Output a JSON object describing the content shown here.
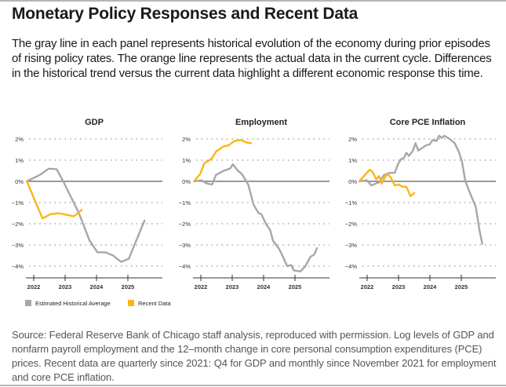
{
  "title": "Monetary Policy Responses and Recent Data",
  "description": "The gray line in each panel represents historical evolution of the economy during prior episodes of rising policy rates. The orange line represents the actual data in the current cycle. Differences in the historical trend versus the current data highlight a different economic response this time.",
  "source": "Source: Federal Reserve Bank of Chicago staff analysis, reproduced with permission. Log levels of GDP and nonfarm payroll employment and the 12–month change in core personal consumption expenditures (PCE) prices. Recent data are quarterly since 2021: Q4 for GDP and monthly since November 2021 for employment and core PCE inflation.",
  "legend": [
    {
      "label": "Estimated Historical Average",
      "color": "#a7a7a9"
    },
    {
      "label": "Recent Data",
      "color": "#fdb515"
    }
  ],
  "chart_data": [
    {
      "type": "line",
      "title": "GDP",
      "xlim": [
        2021.75,
        2026.1
      ],
      "ylim": [
        -4.5,
        2
      ],
      "xticks": [
        "2022",
        "2023",
        "2024",
        "2025"
      ],
      "yticks": [
        "2%",
        "1%",
        "0%",
        "-1%",
        "-2%",
        "-3%",
        "-4%"
      ],
      "grid": true,
      "series": [
        {
          "name": "Estimated Historical Average",
          "color": "#a7a7a9",
          "x": [
            2021.78,
            2022.19,
            2022.48,
            2022.73,
            2022.94,
            2023.44,
            2023.78,
            2024.03,
            2024.28,
            2024.53,
            2024.78,
            2025.03,
            2025.53
          ],
          "y": [
            0,
            0.3,
            0.6,
            0.57,
            0,
            -1.5,
            -2.8,
            -3.35,
            -3.35,
            -3.5,
            -3.8,
            -3.65,
            -1.85
          ]
        },
        {
          "name": "Recent Data",
          "color": "#fdb515",
          "x": [
            2021.78,
            2022.28,
            2022.53,
            2022.78,
            2023.28,
            2023.53
          ],
          "y": [
            0,
            -1.75,
            -1.55,
            -1.5,
            -1.65,
            -1.35
          ]
        }
      ]
    },
    {
      "type": "line",
      "title": "Employment",
      "xlim": [
        2021.75,
        2026.1
      ],
      "ylim": [
        -4.5,
        2
      ],
      "xticks": [
        "2022",
        "2023",
        "2024",
        "2025"
      ],
      "yticks": [
        "2%",
        "1%",
        "0%",
        "-1%",
        "-2%",
        "-3%",
        "-4%"
      ],
      "grid": true,
      "series": [
        {
          "name": "Estimated Historical Average",
          "color": "#a7a7a9",
          "x": [
            2021.78,
            2022.02,
            2022.19,
            2022.36,
            2022.48,
            2022.73,
            2022.93,
            2023.02,
            2023.18,
            2023.31,
            2023.51,
            2023.68,
            2023.84,
            2023.93,
            2024.09,
            2024.21,
            2024.3,
            2024.5,
            2024.63,
            2024.75,
            2024.88,
            2024.96,
            2025.17,
            2025.33,
            2025.5,
            2025.62,
            2025.7
          ],
          "y": [
            0,
            0.05,
            -0.1,
            -0.15,
            0.3,
            0.5,
            0.6,
            0.8,
            0.5,
            0.35,
            -0.15,
            -1.1,
            -1.5,
            -1.55,
            -2.05,
            -2.3,
            -2.8,
            -3.2,
            -3.6,
            -4.0,
            -3.95,
            -4.2,
            -4.25,
            -4.0,
            -3.55,
            -3.45,
            -3.15
          ]
        },
        {
          "name": "Recent Data",
          "color": "#fdb515",
          "x": [
            2021.78,
            2021.98,
            2022.11,
            2022.23,
            2022.36,
            2022.48,
            2022.73,
            2022.89,
            2023.06,
            2023.26,
            2023.47,
            2023.6
          ],
          "y": [
            0,
            0.35,
            0.85,
            0.95,
            1.1,
            1.4,
            1.65,
            1.7,
            1.9,
            1.95,
            1.83,
            1.8
          ]
        }
      ]
    },
    {
      "type": "line",
      "title": "Core PCE Inflation",
      "xlim": [
        2021.75,
        2026.1
      ],
      "ylim": [
        -4.5,
        2
      ],
      "xticks": [
        "2022",
        "2023",
        "2024",
        "2025"
      ],
      "yticks": [
        "2%",
        "1%",
        "0%",
        "-1%",
        "-2%",
        "-3%",
        "-4%"
      ],
      "grid": true,
      "series": [
        {
          "name": "Estimated Historical Average",
          "color": "#a7a7a9",
          "x": [
            2021.75,
            2022.0,
            2022.13,
            2022.38,
            2022.54,
            2022.71,
            2022.88,
            2022.98,
            2023.08,
            2023.17,
            2023.25,
            2023.33,
            2023.46,
            2023.54,
            2023.63,
            2023.88,
            2024.0,
            2024.08,
            2024.21,
            2024.29,
            2024.38,
            2024.46,
            2024.63,
            2024.79,
            2024.92,
            2025.02,
            2025.13,
            2025.29,
            2025.46,
            2025.58,
            2025.67
          ],
          "y": [
            0,
            0.05,
            -0.19,
            -0.05,
            0.3,
            0.4,
            0.4,
            0.8,
            1.05,
            1.1,
            1.35,
            1.2,
            1.45,
            1.8,
            1.45,
            1.7,
            1.75,
            1.95,
            1.9,
            2.15,
            2.05,
            2.15,
            2.0,
            1.8,
            1.4,
            0.95,
            0,
            -0.6,
            -1.2,
            -2.3,
            -2.95
          ]
        },
        {
          "name": "Recent Data",
          "color": "#fdb515",
          "x": [
            2021.75,
            2022.08,
            2022.17,
            2022.29,
            2022.38,
            2022.46,
            2022.63,
            2022.75,
            2022.88,
            2023.0,
            2023.13,
            2023.25,
            2023.38,
            2023.5
          ],
          "y": [
            0,
            0.55,
            0.45,
            0.1,
            0.25,
            -0.1,
            0.35,
            0.2,
            -0.2,
            -0.15,
            -0.25,
            -0.25,
            -0.7,
            -0.55
          ]
        }
      ]
    }
  ]
}
